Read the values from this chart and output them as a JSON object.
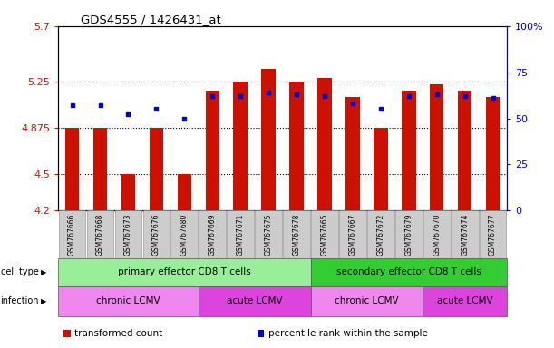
{
  "title": "GDS4555 / 1426431_at",
  "samples": [
    "GSM767666",
    "GSM767668",
    "GSM767673",
    "GSM767676",
    "GSM767680",
    "GSM767669",
    "GSM767671",
    "GSM767675",
    "GSM767678",
    "GSM767665",
    "GSM767667",
    "GSM767672",
    "GSM767679",
    "GSM767670",
    "GSM767674",
    "GSM767677"
  ],
  "red_values": [
    4.875,
    4.875,
    4.5,
    4.875,
    4.5,
    5.175,
    5.25,
    5.35,
    5.25,
    5.275,
    5.125,
    4.875,
    5.175,
    5.225,
    5.175,
    5.125
  ],
  "blue_values": [
    57,
    57,
    52,
    55,
    50,
    62,
    62,
    64,
    63,
    62,
    58,
    55,
    62,
    63,
    62,
    61
  ],
  "ylim_left": [
    4.2,
    5.7
  ],
  "ylim_right": [
    0,
    100
  ],
  "yticks_left": [
    4.2,
    4.5,
    4.875,
    5.25,
    5.7
  ],
  "ytick_labels_left": [
    "4.2",
    "4.5",
    "4.875",
    "5.25",
    "5.7"
  ],
  "yticks_right": [
    0,
    25,
    50,
    75,
    100
  ],
  "ytick_labels_right": [
    "0",
    "25",
    "50",
    "75",
    "100%"
  ],
  "hlines": [
    4.5,
    4.875,
    5.25
  ],
  "bar_color": "#cc1100",
  "dot_color": "#0000cc",
  "cell_type_groups": [
    {
      "label": "primary effector CD8 T cells",
      "start": 0,
      "end": 9,
      "color": "#99ee99"
    },
    {
      "label": "secondary effector CD8 T cells",
      "start": 9,
      "end": 16,
      "color": "#33cc33"
    }
  ],
  "infection_groups": [
    {
      "label": "chronic LCMV",
      "start": 0,
      "end": 5,
      "color": "#ee88ee"
    },
    {
      "label": "acute LCMV",
      "start": 5,
      "end": 9,
      "color": "#dd44dd"
    },
    {
      "label": "chronic LCMV",
      "start": 9,
      "end": 13,
      "color": "#ee88ee"
    },
    {
      "label": "acute LCMV",
      "start": 13,
      "end": 16,
      "color": "#dd44dd"
    }
  ],
  "legend_items": [
    {
      "label": "transformed count",
      "color": "#cc1100"
    },
    {
      "label": "percentile rank within the sample",
      "color": "#0000cc"
    }
  ],
  "row_labels": [
    "cell type",
    "infection"
  ],
  "background_color": "#ffffff",
  "bar_width": 0.5,
  "base_value": 4.2,
  "tick_box_color": "#cccccc"
}
